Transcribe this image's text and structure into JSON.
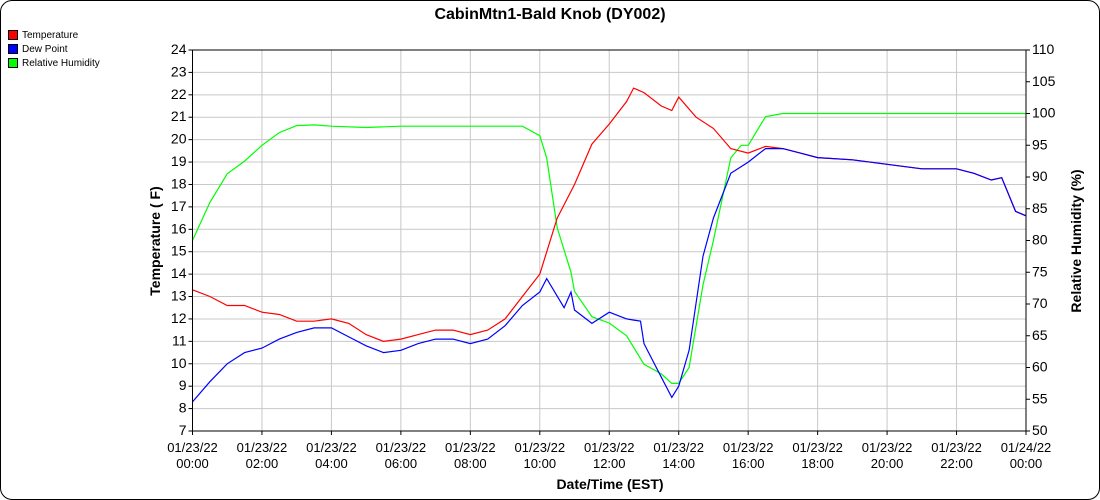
{
  "chart_data": {
    "type": "line",
    "title": "CabinMtn1-Bald Knob (DY002)",
    "xlabel": "Date/Time (EST)",
    "ylabel": "Temperature ( F)",
    "y2label": "Relative Humidity (%)",
    "ylim": [
      7,
      24
    ],
    "y2lim": [
      50,
      110
    ],
    "xlim_hours": [
      0,
      24
    ],
    "grid": true,
    "legend": "top-left",
    "x_ticks": [
      {
        "date": "01/23/22",
        "time": "00:00"
      },
      {
        "date": "01/23/22",
        "time": "02:00"
      },
      {
        "date": "01/23/22",
        "time": "04:00"
      },
      {
        "date": "01/23/22",
        "time": "06:00"
      },
      {
        "date": "01/23/22",
        "time": "08:00"
      },
      {
        "date": "01/23/22",
        "time": "10:00"
      },
      {
        "date": "01/23/22",
        "time": "12:00"
      },
      {
        "date": "01/23/22",
        "time": "14:00"
      },
      {
        "date": "01/23/22",
        "time": "16:00"
      },
      {
        "date": "01/23/22",
        "time": "18:00"
      },
      {
        "date": "01/23/22",
        "time": "20:00"
      },
      {
        "date": "01/23/22",
        "time": "22:00"
      },
      {
        "date": "01/24/22",
        "time": "00:00"
      }
    ],
    "y_ticks": [
      7,
      8,
      9,
      10,
      11,
      12,
      13,
      14,
      15,
      16,
      17,
      18,
      19,
      20,
      21,
      22,
      23,
      24
    ],
    "y2_ticks": [
      50,
      55,
      60,
      65,
      70,
      75,
      80,
      85,
      90,
      95,
      100,
      105,
      110
    ],
    "series": [
      {
        "name": "Temperature",
        "axis": "left",
        "color": "#ff0000",
        "x": [
          0,
          0.5,
          1,
          1.5,
          2,
          2.5,
          3,
          3.5,
          4,
          4.5,
          5,
          5.5,
          6,
          6.5,
          7,
          7.5,
          8,
          8.5,
          9,
          9.5,
          10,
          10.5,
          11,
          11.5,
          12,
          12.5,
          12.7,
          13,
          13.5,
          13.8,
          14,
          14.5,
          15,
          15.5,
          16,
          16.5,
          17,
          17.5,
          18,
          19,
          20,
          21,
          22,
          22.5,
          23,
          23.3,
          23.7,
          24
        ],
        "y": [
          13.3,
          13.0,
          12.6,
          12.6,
          12.3,
          12.2,
          11.9,
          11.9,
          12.0,
          11.8,
          11.3,
          11.0,
          11.1,
          11.3,
          11.5,
          11.5,
          11.3,
          11.5,
          12.0,
          13.0,
          14.0,
          16.5,
          18.0,
          19.8,
          20.7,
          21.7,
          22.3,
          22.1,
          21.5,
          21.3,
          21.9,
          21.0,
          20.5,
          19.6,
          19.4,
          19.7,
          19.6,
          19.4,
          19.2,
          19.1,
          18.9,
          18.7,
          18.7,
          18.5,
          18.2,
          18.3,
          16.8,
          16.6
        ]
      },
      {
        "name": "Dew Point",
        "axis": "left",
        "color": "#0000ff",
        "x": [
          0,
          0.5,
          1,
          1.5,
          2,
          2.5,
          3,
          3.5,
          4,
          4.5,
          5,
          5.5,
          6,
          6.5,
          7,
          7.5,
          8,
          8.5,
          9,
          9.5,
          10,
          10.2,
          10.7,
          10.9,
          11,
          11.5,
          12,
          12.5,
          12.9,
          13,
          13.5,
          13.8,
          14,
          14.3,
          14.7,
          15,
          15.5,
          16,
          16.5,
          17,
          17.5,
          18,
          19,
          20,
          21,
          22,
          22.5,
          23,
          23.3,
          23.7,
          24
        ],
        "y": [
          8.3,
          9.2,
          10.0,
          10.5,
          10.7,
          11.1,
          11.4,
          11.6,
          11.6,
          11.2,
          10.8,
          10.5,
          10.6,
          10.9,
          11.1,
          11.1,
          10.9,
          11.1,
          11.7,
          12.6,
          13.2,
          13.8,
          12.5,
          13.2,
          12.4,
          11.8,
          12.3,
          12.0,
          11.9,
          10.9,
          9.4,
          8.5,
          9.0,
          10.6,
          14.8,
          16.5,
          18.5,
          19.0,
          19.6,
          19.6,
          19.4,
          19.2,
          19.1,
          18.9,
          18.7,
          18.7,
          18.5,
          18.2,
          18.3,
          16.8,
          16.6
        ]
      },
      {
        "name": "Relative Humidity",
        "axis": "right",
        "color": "#00ff00",
        "x": [
          0,
          0.5,
          1,
          1.5,
          2,
          2.5,
          3,
          3.5,
          4,
          5,
          6,
          7,
          8,
          9,
          9.5,
          10,
          10.2,
          10.5,
          10.9,
          11,
          11.5,
          12,
          12.5,
          13,
          13.5,
          13.8,
          14,
          14.3,
          14.7,
          15,
          15.5,
          15.8,
          16,
          16.5,
          17,
          24
        ],
        "y": [
          80,
          86,
          90.5,
          92.5,
          95,
          97,
          98.1,
          98.2,
          98,
          97.8,
          98,
          98,
          98,
          98,
          98,
          96.5,
          93,
          82,
          75,
          72,
          68,
          67,
          65,
          60.5,
          59,
          57.5,
          57.5,
          60,
          73,
          80,
          93,
          95,
          95,
          99.5,
          100,
          100
        ]
      }
    ]
  }
}
